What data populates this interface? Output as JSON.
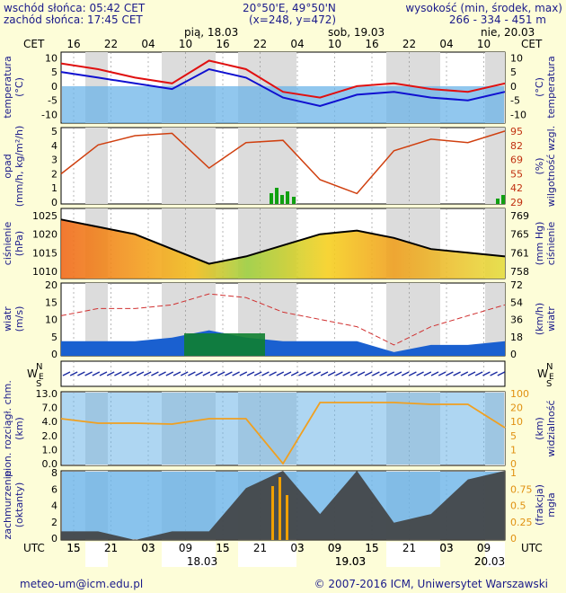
{
  "header": {
    "sunrise": "wschód słońca: 05:42 CET",
    "sunset": "zachód słońca: 17:45 CET",
    "coords": "20°50'E, 49°50'N",
    "grid": "(x=248, y=472)",
    "elevation_title": "wysokość (min, środek, max)",
    "elevation_values": "266 - 334 - 451 m"
  },
  "top_axis": {
    "tz_left": "CET",
    "tz_right": "CET",
    "days": [
      "pią, 18.03",
      "sob, 19.03",
      "nie, 20.03"
    ],
    "hours": [
      "16",
      "22",
      "04",
      "10",
      "16",
      "22",
      "04",
      "10",
      "16",
      "22",
      "04",
      "10"
    ]
  },
  "bottom_axis": {
    "tz_left": "UTC",
    "tz_right": "UTC",
    "hours": [
      "15",
      "21",
      "03",
      "09",
      "15",
      "21",
      "03",
      "09",
      "15",
      "21",
      "03",
      "09"
    ],
    "dates": [
      "18.03",
      "19.03",
      "20.03"
    ]
  },
  "panels": {
    "temperature": {
      "left": "temperatura\n(°C)",
      "right": "(°C)\ntemperatura",
      "ticks": [
        "10",
        "5",
        "0",
        "-5",
        "-10"
      ]
    },
    "precip": {
      "left": "opad\n(mm/h, kg/m²/h)",
      "right": "(%)\nwilgotność wzgl.",
      "ticks_left": [
        "5",
        "4",
        "3",
        "2",
        "1",
        "0"
      ],
      "ticks_right": [
        "95",
        "82",
        "69",
        "55",
        "42",
        "29"
      ]
    },
    "pressure": {
      "left": "ciśnienie\n(hPa)",
      "right": "(mm Hg)\nciśnienie",
      "ticks_left": [
        "1025",
        "1020",
        "1015",
        "1010"
      ],
      "ticks_right": [
        "769",
        "765",
        "761",
        "758"
      ]
    },
    "wind": {
      "left": "wiatr\n(m/s)",
      "right": "(km/h)\nwiatr",
      "ticks_left": [
        "20",
        "15",
        "10",
        "5",
        "0"
      ],
      "ticks_right": [
        "72",
        "54",
        "36",
        "18",
        "0"
      ]
    },
    "wind_dir": {
      "compass": "N",
      "compass_w": "W",
      "compass_e": "E",
      "compass_s": "S"
    },
    "visibility": {
      "left": "pion. rozciągł. chm.\n(km)",
      "right": "(km)\nwidzialność",
      "ticks_left": [
        "13.0",
        "7.0",
        "4.0",
        "2.0",
        "1.0",
        "0.0"
      ],
      "ticks_right": [
        "100",
        "20",
        "10",
        "5",
        "1",
        "0"
      ]
    },
    "clouds": {
      "left": "zachmurzenie\n(oktanty)",
      "right": "(frakcja)\nmgła",
      "ticks_left": [
        "8",
        "6",
        "4",
        "2",
        "0"
      ],
      "ticks_right": [
        "1",
        "0.75",
        "0.5",
        "0.25",
        "0"
      ]
    }
  },
  "footer": {
    "email": "meteo-um@icm.edu.pl",
    "copyright": "© 2007-2016 ICM, Uniwersytet Warszawski"
  },
  "chart_data": [
    {
      "type": "line",
      "name_id": "temperature",
      "x_hours_from_start": [
        0,
        6,
        12,
        18,
        24,
        30,
        36,
        42,
        48,
        54,
        60,
        66,
        72
      ],
      "series": [
        {
          "values": [
            8,
            6,
            3,
            1,
            9,
            6,
            -2,
            -4,
            0,
            1,
            -1,
            -2,
            1
          ]
        },
        {
          "values": [
            5,
            3,
            1,
            -1,
            6,
            3,
            -4,
            -7,
            -3,
            -2,
            -4,
            -5,
            -2
          ]
        }
      ],
      "ylim": [
        -13,
        12
      ]
    },
    {
      "type": "line",
      "name_id": "humidity",
      "x_hours_from_start": [
        0,
        6,
        12,
        18,
        24,
        30,
        36,
        42,
        48,
        54,
        60,
        66,
        72
      ],
      "series": [
        {
          "values": [
            55,
            80,
            88,
            90,
            60,
            82,
            84,
            50,
            38,
            75,
            85,
            82,
            92
          ]
        }
      ],
      "ylim": [
        29,
        95
      ]
    },
    {
      "type": "line",
      "name_id": "pressure",
      "x_hours_from_start": [
        0,
        6,
        12,
        18,
        24,
        30,
        36,
        42,
        48,
        54,
        60,
        66,
        72
      ],
      "series": [
        {
          "values": [
            1024,
            1022,
            1020,
            1016,
            1012,
            1014,
            1017,
            1020,
            1021,
            1019,
            1016,
            1015,
            1014
          ]
        }
      ],
      "ylim": [
        1008,
        1027
      ]
    },
    {
      "type": "line",
      "name_id": "wind",
      "x_hours_from_start": [
        0,
        6,
        12,
        18,
        24,
        30,
        36,
        42,
        48,
        54,
        60,
        66,
        72
      ],
      "series": [
        {
          "values": [
            11,
            13,
            13,
            14,
            17,
            16,
            12,
            10,
            8,
            3,
            8,
            11,
            14
          ]
        },
        {
          "values": [
            4,
            4,
            4,
            5,
            7,
            5,
            4,
            4,
            4,
            1,
            3,
            3,
            4
          ]
        }
      ],
      "ylim": [
        0,
        20
      ]
    },
    {
      "type": "area",
      "name_id": "clouds",
      "x_hours_from_start": [
        0,
        6,
        12,
        18,
        24,
        30,
        36,
        42,
        48,
        54,
        60,
        66,
        72
      ],
      "series": [
        {
          "values": [
            1,
            1,
            0,
            1,
            1,
            6,
            8,
            3,
            8,
            2,
            3,
            7,
            8
          ]
        }
      ],
      "ylim": [
        0,
        8
      ]
    }
  ]
}
